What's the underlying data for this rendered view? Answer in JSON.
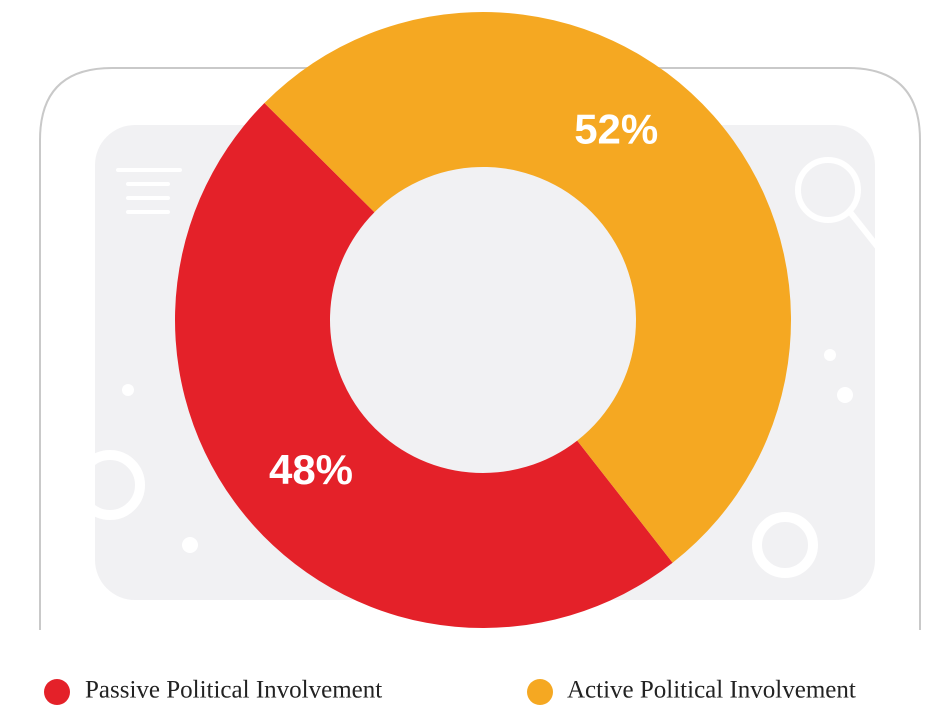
{
  "chart_data": {
    "type": "pie",
    "categories": [
      "Passive Political Involvement",
      "Active Political Involvement"
    ],
    "values": [
      48,
      52
    ],
    "value_labels": [
      "48%",
      "52%"
    ],
    "colors": [
      "#e42129",
      "#f5a822"
    ]
  }
}
